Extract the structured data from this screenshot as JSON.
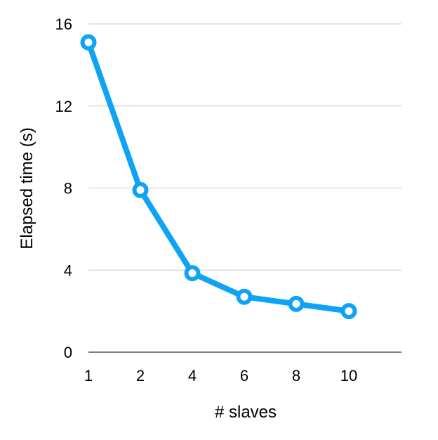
{
  "chart_data": {
    "type": "line",
    "title": "",
    "xlabel": "# slaves",
    "ylabel": "Elapsed time (s)",
    "categories": [
      "1",
      "2",
      "4",
      "6",
      "8",
      "10"
    ],
    "series": [
      {
        "values": [
          15.1,
          7.9,
          3.85,
          2.7,
          2.35,
          2.0
        ],
        "color": "#0fa3f5"
      }
    ],
    "ylim": [
      0,
      16
    ],
    "yticks": [
      "0",
      "4",
      "8",
      "12",
      "16"
    ],
    "grid": true,
    "legend": "none"
  }
}
